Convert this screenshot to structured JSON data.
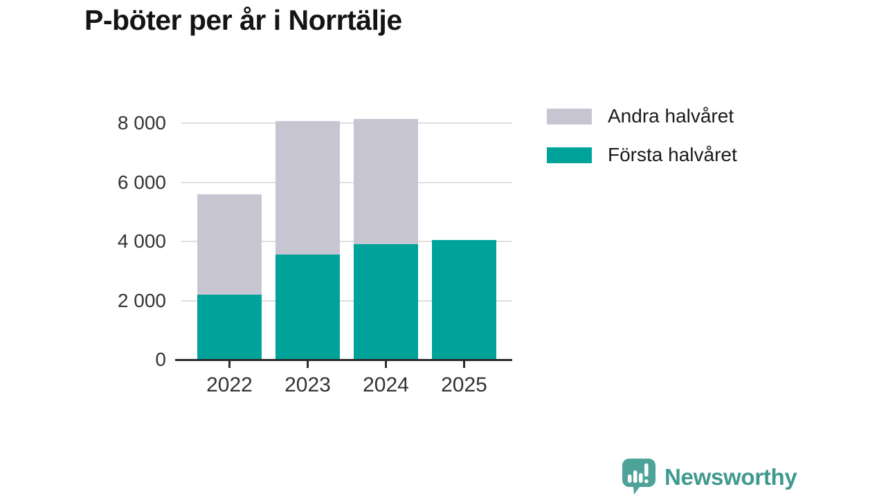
{
  "title": "P-böter per år i Norrtälje",
  "chart_data": {
    "type": "bar",
    "stacked": true,
    "title": "P-böter per år i Norrtälje",
    "categories": [
      "2022",
      "2023",
      "2024",
      "2025"
    ],
    "series": [
      {
        "name": "Första halvåret",
        "color": "#00a39a",
        "values": [
          2200,
          3550,
          3900,
          4050
        ]
      },
      {
        "name": "Andra halvåret",
        "color": "#c8c5d3",
        "values": [
          3400,
          4530,
          4250,
          0
        ]
      }
    ],
    "totals": [
      5600,
      8080,
      8150,
      4050
    ],
    "xlabel": "",
    "ylabel": "",
    "ylim": [
      0,
      8650
    ],
    "y_ticks": [
      0,
      2000,
      4000,
      6000,
      8000
    ],
    "y_tick_labels": [
      "0",
      "2 000",
      "4 000",
      "6 000",
      "8 000"
    ],
    "grid": true,
    "legend_position": "top-right"
  },
  "legend": {
    "items": [
      {
        "label": "Andra halvåret",
        "color": "#c8c5d3"
      },
      {
        "label": "Första halvåret",
        "color": "#00a39a"
      }
    ]
  },
  "colors": {
    "first_half": "#00a39a",
    "second_half": "#c8c5d3",
    "axis": "#2b2b2b",
    "grid": "#dedede",
    "brand": "#3f998f"
  },
  "brand": {
    "name": "Newsworthy",
    "logo_icon": "speech-bubble-bar-chart-icon"
  }
}
